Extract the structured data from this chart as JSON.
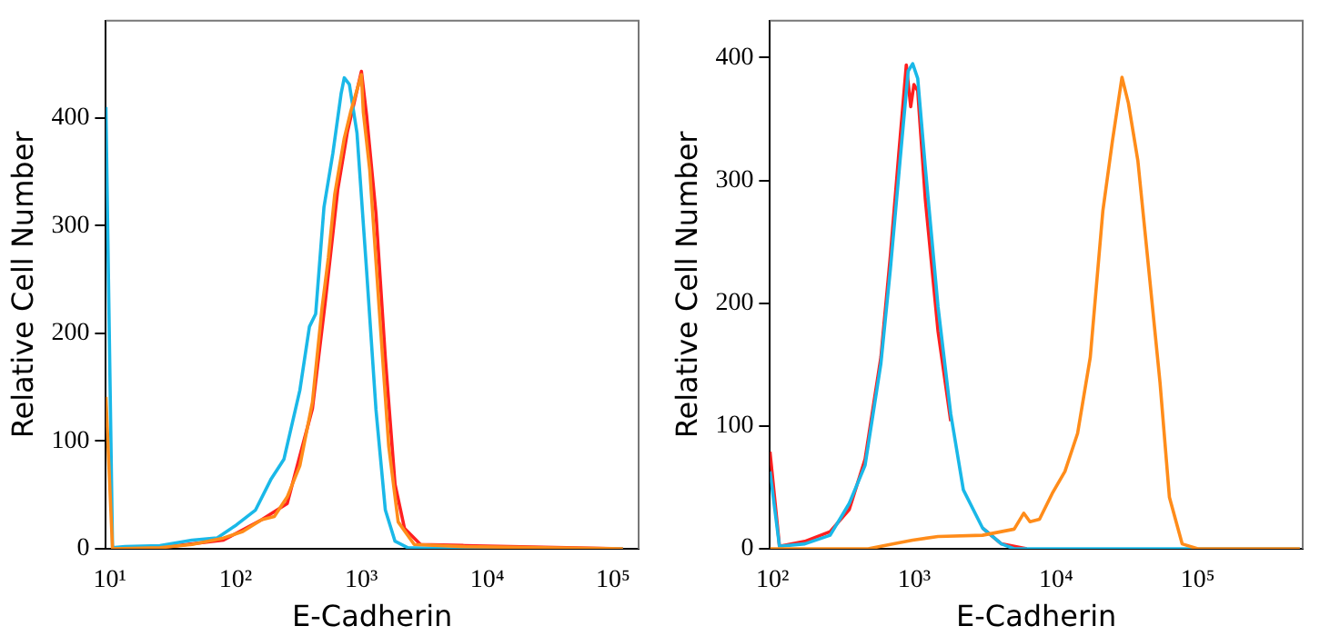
{
  "chart_data": [
    {
      "type": "line",
      "xlabel": "E-Cadherin",
      "ylabel": "Relative Cell Number",
      "log": "x",
      "marker": "none",
      "xlim": [
        9.3,
        160000
      ],
      "ylim": [
        0,
        490
      ],
      "xticks": [
        {
          "value": 10,
          "label": "10¹"
        },
        {
          "value": 100,
          "label": "10²"
        },
        {
          "value": 1000,
          "label": "10³"
        },
        {
          "value": 10000,
          "label": "10⁴"
        },
        {
          "value": 100000,
          "label": "10⁵"
        }
      ],
      "yticks": [
        0,
        100,
        200,
        300,
        400
      ],
      "series": [
        {
          "color": "#ff2020",
          "x": [
            10.5,
            25,
            80,
            161,
            257,
            408,
            516,
            650,
            774,
            1000,
            1100,
            1306,
            1550,
            1850,
            2200,
            2950,
            6630,
            120000
          ],
          "values": [
            0,
            1,
            8,
            27,
            42,
            130,
            229,
            334,
            387,
            443,
            402,
            311,
            177,
            60,
            19,
            4,
            3,
            0
          ]
        },
        {
          "color": "#1ab8e8",
          "x": [
            9.3,
            10.5,
            13.2,
            25,
            45,
            71,
            101,
            144,
            192,
            242,
            324,
            386,
            433,
            504,
            593,
            689,
            731,
            802,
            922,
            1100,
            1306,
            1550,
            1850,
            2340,
            5250,
            120000
          ],
          "values": [
            410,
            1,
            2,
            3,
            8,
            10,
            22,
            36,
            65,
            83,
            147,
            206,
            218,
            317,
            367,
            422,
            437,
            431,
            386,
            258,
            129,
            36,
            7,
            1,
            0,
            0
          ]
        },
        {
          "color": "#ff8c1a",
          "x": [
            9.3,
            10.5,
            25,
            45,
            80,
            114,
            161,
            203,
            257,
            324,
            408,
            486,
            546,
            614,
            731,
            820,
            1000,
            1036,
            1164,
            1385,
            1650,
            1960,
            2630,
            6630,
            120000
          ],
          "values": [
            141,
            0,
            1,
            4,
            10,
            16,
            27,
            30,
            48,
            77,
            136,
            223,
            270,
            329,
            381,
            405,
            440,
            405,
            352,
            223,
            95,
            25,
            4,
            2,
            0
          ]
        }
      ]
    },
    {
      "type": "line",
      "xlabel": "E-Cadherin",
      "ylabel": "Relative Cell Number",
      "log": "x",
      "marker": "none",
      "xlim": [
        96,
        550000
      ],
      "ylim": [
        0,
        430
      ],
      "xticks": [
        {
          "value": 100,
          "label": "10²"
        },
        {
          "value": 1000,
          "label": "10³"
        },
        {
          "value": 10000,
          "label": "10⁴"
        },
        {
          "value": 100000,
          "label": "10⁵"
        }
      ],
      "yticks": [
        0,
        100,
        200,
        300,
        400
      ],
      "series": [
        {
          "color": "#ff2020",
          "x": [
            96,
            112,
            169,
            255,
            348,
            450,
            582,
            679,
            777,
            879,
            944,
            995,
            1058,
            1196,
            1472,
            1808,
            2220,
            3030,
            4120,
            6230
          ],
          "values": [
            79,
            2,
            6,
            14,
            32,
            73,
            156,
            239,
            321,
            394,
            360,
            378,
            373,
            285,
            177,
            104,
            null,
            17,
            4,
            0
          ]
        },
        {
          "color": "#1ab8e8",
          "x": [
            96,
            112,
            169,
            255,
            348,
            450,
            582,
            679,
            794,
            906,
            975,
            1058,
            1196,
            1472,
            1808,
            2220,
            3030,
            4120,
            5070,
            525000
          ],
          "values": [
            63,
            2,
            4,
            11,
            37,
            68,
            151,
            228,
            316,
            389,
            395,
            383,
            311,
            197,
            110,
            48,
            17,
            4,
            0,
            0
          ]
        },
        {
          "color": "#ff8c1a",
          "x": [
            96,
            473,
            716,
            975,
            1472,
            3030,
            5070,
            5920,
            6550,
            7650,
            9400,
            11560,
            14200,
            17450,
            21400,
            25000,
            29200,
            32400,
            37800,
            44100,
            54200,
            63100,
            77600,
            100000,
            525000
          ],
          "values": [
            0,
            0,
            4,
            7,
            10,
            11,
            16,
            29,
            22,
            24,
            45,
            63,
            94,
            156,
            275,
            332,
            384,
            363,
            316,
            239,
            135,
            42,
            4,
            0,
            0
          ]
        }
      ]
    }
  ]
}
